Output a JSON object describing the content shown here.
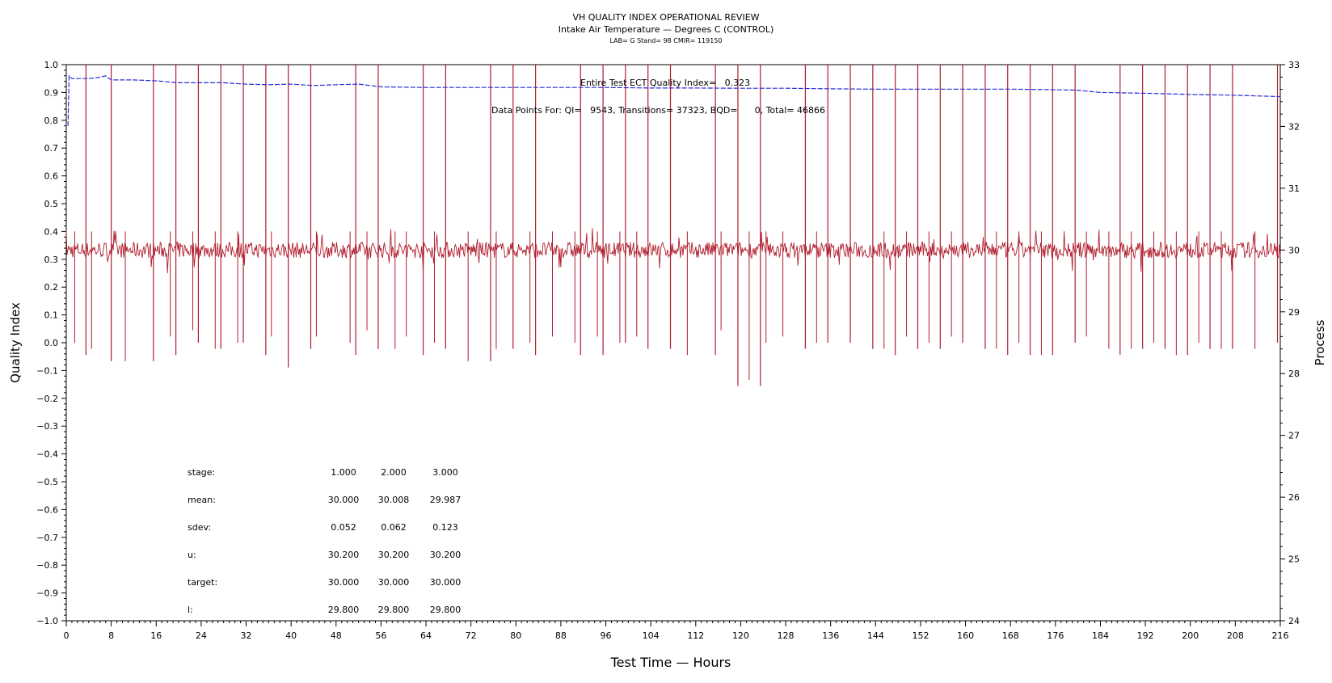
{
  "header": {
    "title": "VH QUALITY INDEX OPERATIONAL REVIEW",
    "subtitle": "Intake Air Temperature — Degrees C (CONTROL)",
    "meta": "LAB= G Stand= 98 CMIR= 119150"
  },
  "annotations": {
    "qi_line": "Entire Test ECT Quality Index=   0.323",
    "points_line": "Data Points For: QI=   9543, Transitions= 37323, BQD=      0, Total= 46866"
  },
  "stats_table": {
    "rows": [
      {
        "label": "stage:",
        "values": [
          "1.000",
          "2.000",
          "3.000"
        ]
      },
      {
        "label": "mean:",
        "values": [
          "30.000",
          "30.008",
          "29.987"
        ]
      },
      {
        "label": "sdev:",
        "values": [
          "0.052",
          "0.062",
          "0.123"
        ]
      },
      {
        "label": "u:",
        "values": [
          "30.200",
          "30.200",
          "30.200"
        ]
      },
      {
        "label": "target:",
        "values": [
          "30.000",
          "30.000",
          "30.000"
        ]
      },
      {
        "label": "l:",
        "values": [
          "29.800",
          "29.800",
          "29.800"
        ]
      }
    ]
  },
  "colors": {
    "quality_index": "#2b2bd6",
    "process": "#b01e2e"
  },
  "chart_data": {
    "type": "line",
    "xlabel": "Test Time — Hours",
    "ylabel": "Quality Index",
    "y2label": "Process",
    "xlim": [
      0,
      216
    ],
    "ylim": [
      -1.0,
      1.0
    ],
    "y2lim": [
      24,
      33
    ],
    "xticks": [
      0,
      8,
      16,
      24,
      32,
      40,
      48,
      56,
      64,
      72,
      80,
      88,
      96,
      104,
      112,
      120,
      128,
      136,
      144,
      152,
      160,
      168,
      176,
      184,
      192,
      200,
      208,
      216
    ],
    "yticks": [
      1.0,
      0.9,
      0.8,
      0.7,
      0.6,
      0.5,
      0.4,
      0.3,
      0.2,
      0.1,
      0.0,
      -0.1,
      -0.2,
      -0.3,
      -0.4,
      -0.5,
      -0.6,
      -0.7,
      -0.8,
      -0.9,
      -1.0
    ],
    "ytick_labels": [
      "1.0",
      "0.9",
      "0.8",
      "0.7",
      "0.6",
      "0.5",
      "0.4",
      "0.3",
      "0.2",
      "0.1",
      "0.0",
      "−0.1",
      "−0.2",
      "−0.3",
      "−0.4",
      "−0.5",
      "−0.6",
      "−0.7",
      "−0.8",
      "−0.9",
      "−1.0"
    ],
    "y2ticks": [
      33,
      32,
      31,
      30,
      29,
      28,
      27,
      26,
      25,
      24
    ],
    "series": [
      {
        "axis": "left",
        "x": [
          0.3,
          0.5,
          1,
          2,
          4,
          6,
          7,
          8,
          12,
          16,
          20,
          24,
          28,
          32,
          36,
          40,
          44,
          48,
          52,
          56,
          64,
          72,
          80,
          88,
          96,
          104,
          112,
          120,
          128,
          136,
          144,
          152,
          160,
          168,
          176,
          180,
          184,
          192,
          200,
          208,
          216
        ],
        "y": [
          0.78,
          0.96,
          0.95,
          0.95,
          0.95,
          0.955,
          0.96,
          0.945,
          0.945,
          0.942,
          0.935,
          0.935,
          0.935,
          0.93,
          0.928,
          0.93,
          0.925,
          0.928,
          0.93,
          0.92,
          0.918,
          0.918,
          0.918,
          0.918,
          0.918,
          0.916,
          0.916,
          0.915,
          0.915,
          0.913,
          0.912,
          0.912,
          0.912,
          0.912,
          0.91,
          0.908,
          0.9,
          0.897,
          0.893,
          0.89,
          0.885
        ]
      },
      {
        "axis": "right",
        "baseline": 30.0,
        "spike_x": [
          3.5,
          8.0,
          15.5,
          19.5,
          23.5,
          27.5,
          31.5,
          35.5,
          39.5,
          43.5,
          51.5,
          55.5,
          63.5,
          67.5,
          75.5,
          79.5,
          83.5,
          91.5,
          95.5,
          99.5,
          103.5,
          107.5,
          115.5,
          119.5,
          123.5,
          131.5,
          135.5,
          139.5,
          143.5,
          147.5,
          151.5,
          155.5,
          159.5,
          163.5,
          167.5,
          171.5,
          175.5,
          179.5,
          187.5,
          191.5,
          195.5,
          199.5,
          203.5,
          207.5,
          215.5
        ],
        "spike_max": 33.0,
        "spike_min": [
          28.3,
          28.2,
          28.2,
          28.3,
          28.5,
          28.4,
          28.5,
          28.3,
          28.1,
          28.4,
          28.3,
          28.4,
          28.3,
          28.4,
          28.2,
          28.4,
          28.3,
          28.3,
          28.3,
          28.5,
          28.4,
          28.4,
          28.3,
          27.8,
          27.8,
          28.4,
          28.5,
          28.5,
          28.4,
          28.3,
          28.4,
          28.4,
          28.5,
          28.4,
          28.3,
          28.3,
          28.3,
          28.5,
          28.3,
          28.4,
          28.4,
          28.3,
          28.4,
          28.4,
          28.5
        ],
        "dip_x": [
          1.5,
          4.5,
          10.5,
          18.5,
          22.5,
          26.5,
          30.5,
          36.5,
          44.5,
          50.5,
          53.5,
          58.5,
          60.5,
          65.5,
          71.5,
          76.5,
          82.5,
          86.5,
          90.5,
          94.5,
          98.5,
          101.5,
          110.5,
          116.5,
          121.5,
          124.5,
          127.5,
          133.5,
          139.5,
          145.5,
          149.5,
          153.5,
          157.5,
          165.5,
          169.5,
          173.5,
          181.5,
          185.5,
          189.5,
          193.5,
          197.5,
          201.5,
          205.5,
          211.5
        ],
        "dip_min": [
          28.5,
          28.4,
          28.2,
          28.6,
          28.7,
          28.4,
          28.5,
          28.6,
          28.6,
          28.5,
          28.7,
          28.4,
          28.6,
          28.5,
          28.2,
          28.4,
          28.5,
          28.6,
          28.5,
          28.6,
          28.5,
          28.6,
          28.3,
          28.7,
          27.9,
          28.5,
          28.6,
          28.5,
          28.6,
          28.4,
          28.6,
          28.5,
          28.6,
          28.4,
          28.5,
          28.3,
          28.6,
          28.4,
          28.4,
          28.5,
          28.3,
          28.5,
          28.4,
          28.4
        ]
      }
    ]
  }
}
